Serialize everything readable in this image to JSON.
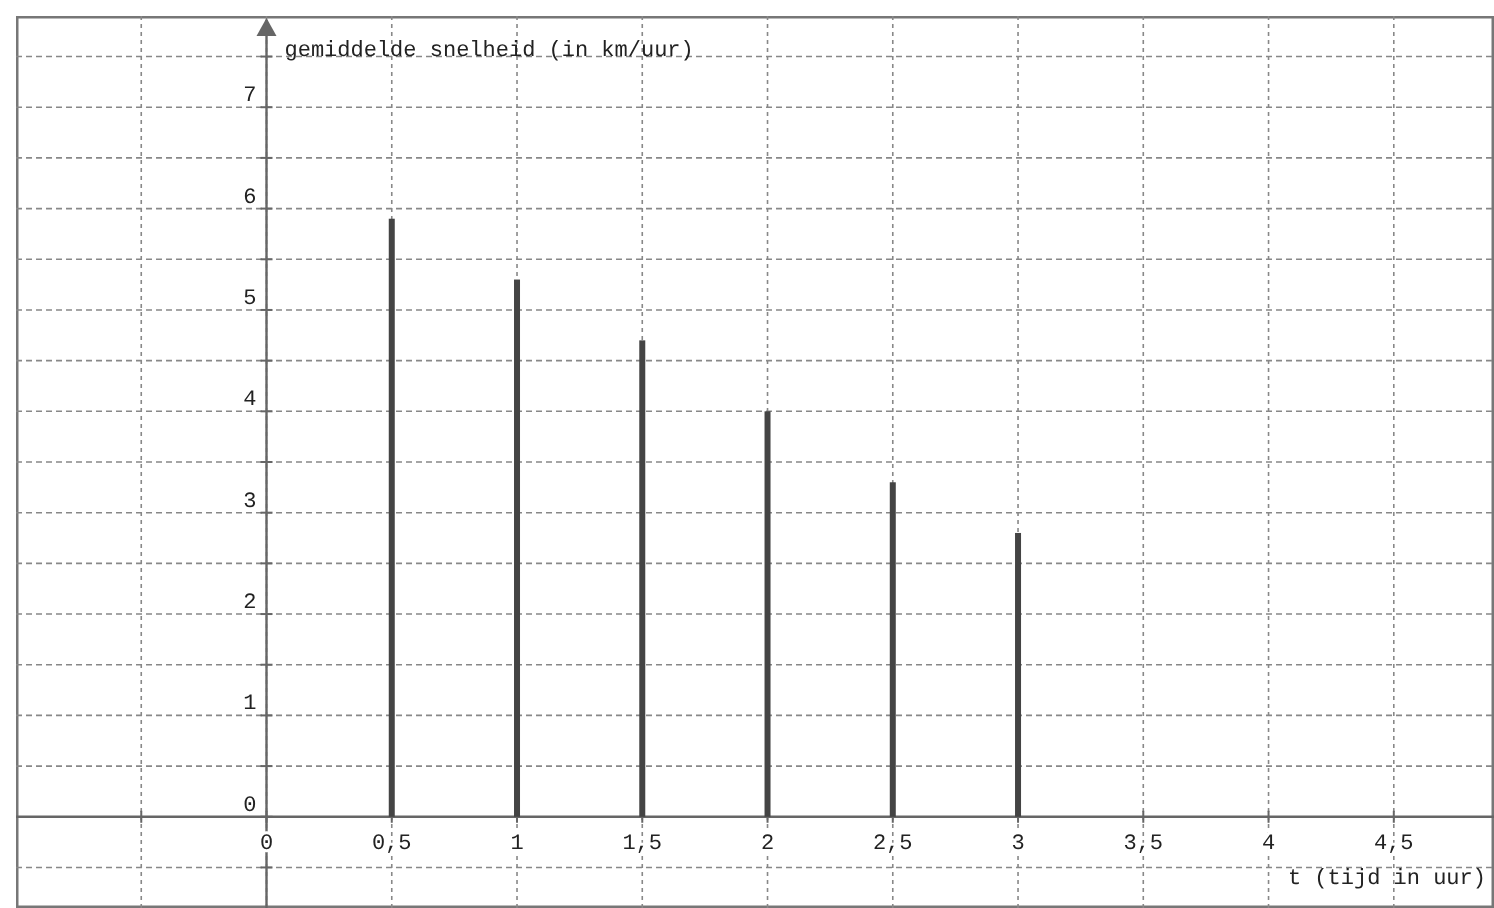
{
  "chart_data": {
    "type": "bar",
    "ylabel": "gemiddelde snelheid (in km/uur)",
    "xlabel": "t (tijd in uur)",
    "x": [
      0.5,
      1,
      1.5,
      2,
      2.5,
      3
    ],
    "values": [
      5.9,
      5.3,
      4.7,
      4.0,
      3.3,
      2.8
    ],
    "color": "#444444",
    "xlim": [
      -1,
      4.9
    ],
    "ylim": [
      -0.9,
      7.9
    ],
    "xticks": [
      {
        "value": -0.5,
        "label": null
      },
      {
        "value": 0,
        "label": "0"
      },
      {
        "value": 0.5,
        "label": "0,5"
      },
      {
        "value": 1,
        "label": "1"
      },
      {
        "value": 1.5,
        "label": "1,5"
      },
      {
        "value": 2,
        "label": "2"
      },
      {
        "value": 2.5,
        "label": "2,5"
      },
      {
        "value": 3,
        "label": "3"
      },
      {
        "value": 3.5,
        "label": "3,5"
      },
      {
        "value": 4,
        "label": "4"
      },
      {
        "value": 4.5,
        "label": "4,5"
      }
    ],
    "yticks": [
      {
        "value": -0.5,
        "label": null
      },
      0,
      {
        "value": 0.5,
        "label": null
      },
      1,
      {
        "value": 1.5,
        "label": null
      },
      2,
      {
        "value": 2.5,
        "label": null
      },
      3,
      {
        "value": 3.5,
        "label": null
      },
      4,
      {
        "value": 4.5,
        "label": null
      },
      5,
      {
        "value": 5.5,
        "label": null
      },
      6,
      {
        "value": 6.5,
        "label": null
      },
      7,
      {
        "value": 7.5,
        "label": null
      }
    ],
    "grid": true
  }
}
